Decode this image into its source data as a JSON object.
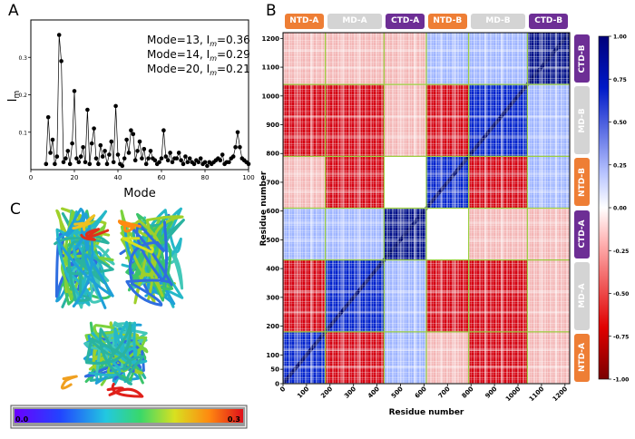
{
  "colors": {
    "orange": "#ee7e35",
    "gray": "#d4d4d4",
    "purple": "#6d2e95",
    "grid_green": "#9bd040",
    "red": "#c4000c",
    "blue": "#001cc4"
  },
  "panels": {
    "a": {
      "letter": "A"
    },
    "b": {
      "letter": "B"
    },
    "c": {
      "letter": "C",
      "colorbar": {
        "min_label": "0.0",
        "max_label": "0.3"
      }
    }
  },
  "chart_data": [
    {
      "id": "panel-a",
      "type": "line",
      "xlabel": "Mode",
      "ylabel": "Im",
      "xlim": [
        0,
        100
      ],
      "ylim": [
        0,
        0.4
      ],
      "xticks": [
        "0",
        "20",
        "40",
        "60",
        "80",
        "100"
      ],
      "yticks": [
        "0.1",
        "0.2",
        "0.3"
      ],
      "annotations": [
        "Mode=13, Im=0.36",
        "Mode=14, Im=0.29",
        "Mode=20, Im=0.21"
      ],
      "x": [
        7,
        8,
        9,
        10,
        11,
        12,
        13,
        14,
        15,
        16,
        17,
        18,
        19,
        20,
        21,
        22,
        23,
        24,
        25,
        26,
        27,
        28,
        29,
        30,
        31,
        32,
        33,
        34,
        35,
        36,
        37,
        38,
        39,
        40,
        41,
        42,
        43,
        44,
        45,
        46,
        47,
        48,
        49,
        50,
        51,
        52,
        53,
        54,
        55,
        56,
        57,
        58,
        59,
        60,
        61,
        62,
        63,
        64,
        65,
        66,
        67,
        68,
        69,
        70,
        71,
        72,
        73,
        74,
        75,
        76,
        77,
        78,
        79,
        80,
        81,
        82,
        83,
        84,
        85,
        86,
        87,
        88,
        89,
        90,
        91,
        92,
        93,
        94,
        95,
        96,
        97,
        98,
        99,
        100
      ],
      "values": [
        0.015,
        0.14,
        0.045,
        0.08,
        0.015,
        0.035,
        0.36,
        0.29,
        0.02,
        0.03,
        0.05,
        0.015,
        0.07,
        0.21,
        0.03,
        0.02,
        0.035,
        0.06,
        0.02,
        0.16,
        0.015,
        0.07,
        0.11,
        0.03,
        0.015,
        0.065,
        0.035,
        0.05,
        0.015,
        0.04,
        0.075,
        0.02,
        0.17,
        0.04,
        0.015,
        0.01,
        0.03,
        0.08,
        0.045,
        0.105,
        0.095,
        0.025,
        0.05,
        0.075,
        0.03,
        0.055,
        0.015,
        0.03,
        0.05,
        0.03,
        0.025,
        0.015,
        0.02,
        0.03,
        0.105,
        0.035,
        0.025,
        0.045,
        0.02,
        0.03,
        0.03,
        0.045,
        0.025,
        0.015,
        0.035,
        0.02,
        0.03,
        0.02,
        0.015,
        0.025,
        0.02,
        0.03,
        0.015,
        0.02,
        0.01,
        0.02,
        0.015,
        0.02,
        0.025,
        0.03,
        0.025,
        0.04,
        0.015,
        0.02,
        0.02,
        0.03,
        0.035,
        0.06,
        0.1,
        0.06,
        0.03,
        0.025,
        0.02,
        0.015
      ]
    },
    {
      "id": "panel-b",
      "type": "heatmap",
      "xlabel": "Residue number",
      "ylabel": "Residue number",
      "xlim": [
        0,
        1220
      ],
      "ylim": [
        0,
        1220
      ],
      "xticks": [
        "0",
        "100",
        "200",
        "300",
        "400",
        "500",
        "600",
        "700",
        "800",
        "900",
        "1000",
        "1100",
        "1200"
      ],
      "yticks": [
        "0",
        "50",
        "100",
        "200",
        "300",
        "400",
        "500",
        "600",
        "700",
        "800",
        "900",
        "1000",
        "1100",
        "1200"
      ],
      "domain_boundaries": [
        0,
        180,
        430,
        610,
        790,
        1040,
        1220
      ],
      "domains": [
        {
          "name": "NTD-A",
          "start": 0,
          "end": 180,
          "color": "orange"
        },
        {
          "name": "MD-A",
          "start": 180,
          "end": 430,
          "color": "gray"
        },
        {
          "name": "CTD-A",
          "start": 430,
          "end": 610,
          "color": "purple"
        },
        {
          "name": "NTD-B",
          "start": 610,
          "end": 790,
          "color": "orange"
        },
        {
          "name": "MD-B",
          "start": 790,
          "end": 1040,
          "color": "gray"
        },
        {
          "name": "CTD-B",
          "start": 1040,
          "end": 1220,
          "color": "purple"
        }
      ],
      "colorbar": {
        "min": -1.0,
        "max": 1.0,
        "ticks": [
          "1.00",
          "0.75",
          "0.50",
          "0.25",
          "0.00",
          "-0.25",
          "-0.50",
          "-0.75",
          "-1.00"
        ]
      }
    }
  ]
}
